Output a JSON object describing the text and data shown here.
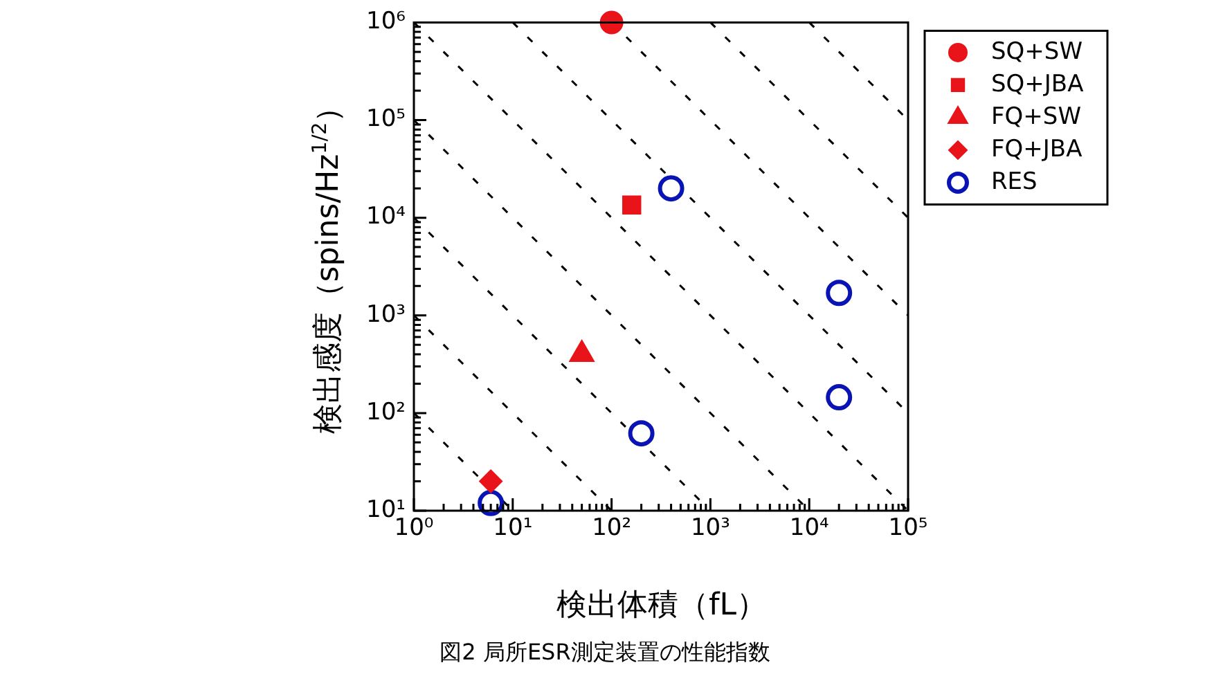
{
  "chart_data": {
    "type": "scatter",
    "xlabel": "検出体積（fL）",
    "ylabel": "検出感度（spins/Hz$^{1/2}$）",
    "annotations": [
      "図2 局所ESR測定装置の性能指数"
    ],
    "log": "xy",
    "grid": false,
    "legend": "right",
    "xlim": [
      1,
      100000
    ],
    "ylim": [
      10,
      1000000
    ],
    "xticks": [
      {
        "value": 1,
        "label": "10⁰"
      },
      {
        "value": 10,
        "label": "10¹"
      },
      {
        "value": 100,
        "label": "10²"
      },
      {
        "value": 1000,
        "label": "10³"
      },
      {
        "value": 10000,
        "label": "10⁴"
      },
      {
        "value": 100000,
        "label": "10⁵"
      }
    ],
    "yticks": [
      {
        "value": 10,
        "label": "10¹"
      },
      {
        "value": 100,
        "label": "10²"
      },
      {
        "value": 1000,
        "label": "10³"
      },
      {
        "value": 10000,
        "label": "10⁴"
      },
      {
        "value": 100000,
        "label": "10⁵"
      },
      {
        "value": 1000000,
        "label": "10⁶"
      }
    ],
    "series": [
      {
        "type": "line",
        "color": "#000000",
        "line_style": "dashed",
        "marker": "none",
        "x": [
          1,
          10
        ],
        "values": [
          100,
          10
        ]
      },
      {
        "type": "line",
        "color": "#000000",
        "line_style": "dashed",
        "marker": "none",
        "x": [
          1,
          100
        ],
        "values": [
          1000,
          10
        ]
      },
      {
        "type": "line",
        "color": "#000000",
        "line_style": "dashed",
        "marker": "none",
        "x": [
          1,
          1000
        ],
        "values": [
          10000,
          10
        ]
      },
      {
        "type": "line",
        "color": "#000000",
        "line_style": "dashed",
        "marker": "none",
        "x": [
          1,
          10000
        ],
        "values": [
          100000,
          10
        ]
      },
      {
        "type": "line",
        "color": "#000000",
        "line_style": "dashed",
        "marker": "none",
        "x": [
          1,
          100000
        ],
        "values": [
          1000000,
          10
        ]
      },
      {
        "type": "line",
        "color": "#000000",
        "line_style": "dashed",
        "marker": "none",
        "x": [
          10,
          100000
        ],
        "values": [
          1000000,
          100
        ]
      },
      {
        "type": "line",
        "color": "#000000",
        "line_style": "dashed",
        "marker": "none",
        "x": [
          100,
          100000
        ],
        "values": [
          1000000,
          1000
        ]
      },
      {
        "type": "line",
        "color": "#000000",
        "line_style": "dashed",
        "marker": "none",
        "x": [
          1000,
          100000
        ],
        "values": [
          1000000,
          10000
        ]
      },
      {
        "type": "line",
        "color": "#000000",
        "line_style": "dashed",
        "marker": "none",
        "x": [
          10000,
          100000
        ],
        "values": [
          1000000,
          100000
        ]
      },
      {
        "name": "SQ+SW",
        "color": "#e8141a",
        "marker": "circle",
        "x": [
          100
        ],
        "values": [
          1000000
        ]
      },
      {
        "name": "SQ+JBA",
        "color": "#e8141a",
        "marker": "square",
        "x": [
          160
        ],
        "values": [
          13500
        ]
      },
      {
        "name": "FQ+SW",
        "color": "#e8141a",
        "marker": "triangle",
        "x": [
          50
        ],
        "values": [
          400
        ]
      },
      {
        "name": "FQ+JBA",
        "color": "#e8141a",
        "marker": "diamond",
        "x": [
          6
        ],
        "values": [
          20
        ]
      },
      {
        "name": "RES",
        "color": "#0a14b4",
        "marker": "circle",
        "x": [
          6,
          200,
          400,
          20000,
          20000
        ],
        "values": [
          12,
          62,
          20000,
          1700,
          145
        ]
      }
    ]
  }
}
